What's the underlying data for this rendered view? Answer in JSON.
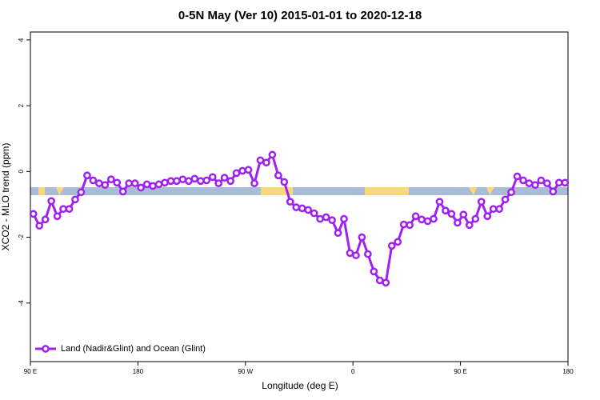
{
  "chart_data": {
    "type": "line",
    "title": "0-5N May (Ver 10)   2015-01-01 to 2020-12-18",
    "xlabel": "Longitude (deg E)",
    "ylabel": "XCO2 - MLO trend (ppm)",
    "x": [
      92.5,
      97.5,
      102.5,
      107.5,
      112.5,
      117.5,
      122.5,
      127.5,
      132.5,
      137.5,
      142.5,
      147.5,
      152.5,
      157.5,
      162.5,
      167.5,
      172.5,
      177.5,
      182.5,
      187.5,
      192.5,
      197.5,
      202.5,
      207.5,
      212.5,
      217.5,
      222.5,
      227.5,
      232.5,
      237.5,
      242.5,
      247.5,
      252.5,
      257.5,
      262.5,
      267.5,
      272.5,
      277.5,
      282.5,
      287.5,
      292.5,
      297.5,
      302.5,
      307.5,
      312.5,
      317.5,
      322.5,
      327.5,
      332.5,
      337.5,
      342.5,
      347.5,
      352.5,
      357.5,
      362.5,
      367.5,
      372.5,
      377.5,
      382.5,
      387.5,
      392.5,
      397.5,
      402.5,
      407.5,
      412.5,
      417.5,
      422.5,
      427.5,
      432.5,
      437.5,
      442.5,
      447.5,
      452.5,
      457.5,
      462.5,
      467.5,
      472.5,
      477.5,
      482.5,
      487.5,
      492.5,
      497.5,
      502.5,
      507.5,
      512.5,
      517.5,
      522.5,
      527.5,
      532.5,
      537.5
    ],
    "series": [
      {
        "name": "Land (Nadir&Glint) and Ocean (Glint)",
        "color": "#a020f0",
        "values": [
          -1.29,
          -1.65,
          -1.46,
          -0.9,
          -1.36,
          -1.14,
          -1.14,
          -0.85,
          -0.63,
          -0.12,
          -0.27,
          -0.36,
          -0.41,
          -0.24,
          -0.34,
          -0.61,
          -0.36,
          -0.36,
          -0.49,
          -0.39,
          -0.44,
          -0.39,
          -0.34,
          -0.29,
          -0.29,
          -0.24,
          -0.29,
          -0.22,
          -0.29,
          -0.27,
          -0.17,
          -0.36,
          -0.19,
          -0.29,
          -0.05,
          0.02,
          0.05,
          -0.36,
          0.34,
          0.27,
          0.51,
          -0.12,
          -0.32,
          -0.92,
          -1.09,
          -1.12,
          -1.17,
          -1.27,
          -1.44,
          -1.39,
          -1.48,
          -1.87,
          -1.44,
          -2.48,
          -2.55,
          -2.0,
          -2.51,
          -3.04,
          -3.31,
          -3.38,
          -2.26,
          -2.14,
          -1.61,
          -1.63,
          -1.36,
          -1.46,
          -1.51,
          -1.44,
          -0.92,
          -1.19,
          -1.29,
          -1.56,
          -1.31,
          -1.63,
          -1.44,
          -0.92,
          -1.36,
          -1.14,
          -1.14,
          -0.85,
          -0.63,
          -0.15,
          -0.27,
          -0.36,
          -0.41,
          -0.27,
          -0.36,
          -0.61,
          -0.34,
          -0.34
        ]
      }
    ],
    "xlim": [
      90,
      540
    ],
    "xticks": [
      {
        "value": 90,
        "label": "90 E"
      },
      180,
      {
        "value": 270,
        "label": "90 W"
      },
      {
        "value": 360,
        "label": "0"
      },
      {
        "value": 450,
        "label": "90 E"
      },
      {
        "value": 540,
        "label": "180"
      }
    ],
    "ylim": [
      -5.78,
      4.24
    ],
    "yticks": [
      -4,
      -2,
      0,
      2,
      4
    ],
    "legend": "bottomleft"
  }
}
